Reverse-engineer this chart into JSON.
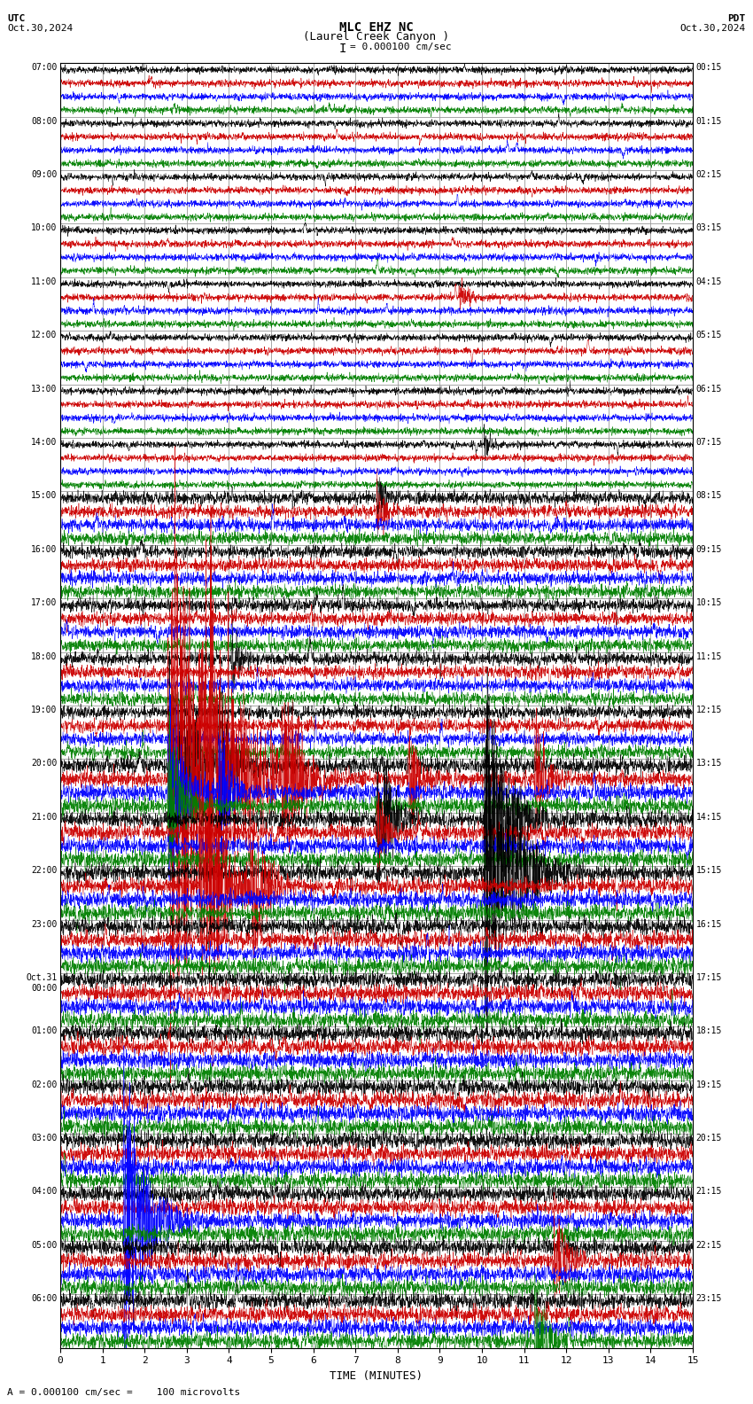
{
  "title_line1": "MLC EHZ NC",
  "title_line2": "(Laurel Creek Canyon )",
  "scale_label": "= 0.000100 cm/sec",
  "utc_label": "UTC",
  "utc_date": "Oct.30,2024",
  "pdt_label": "PDT",
  "pdt_date": "Oct.30,2024",
  "bottom_label": "A = 0.000100 cm/sec =    100 microvolts",
  "xlabel": "TIME (MINUTES)",
  "xlim": [
    0,
    15
  ],
  "xticks": [
    0,
    1,
    2,
    3,
    4,
    5,
    6,
    7,
    8,
    9,
    10,
    11,
    12,
    13,
    14,
    15
  ],
  "fig_width": 8.5,
  "fig_height": 15.84,
  "dpi": 100,
  "bg_color": "#ffffff",
  "grid_color": "#999999",
  "trace_colors": [
    "black",
    "#cc0000",
    "blue",
    "green"
  ],
  "n_blocks": 24,
  "traces_per_block": 4,
  "left_labels": [
    "07:00",
    "08:00",
    "09:00",
    "10:00",
    "11:00",
    "12:00",
    "13:00",
    "14:00",
    "15:00",
    "16:00",
    "17:00",
    "18:00",
    "19:00",
    "20:00",
    "21:00",
    "22:00",
    "23:00",
    "Oct.31\n00:00",
    "01:00",
    "02:00",
    "03:00",
    "04:00",
    "05:00",
    "06:00"
  ],
  "right_labels": [
    "00:15",
    "01:15",
    "02:15",
    "03:15",
    "04:15",
    "05:15",
    "06:15",
    "07:15",
    "08:15",
    "09:15",
    "10:15",
    "11:15",
    "12:15",
    "13:15",
    "14:15",
    "15:15",
    "16:15",
    "17:15",
    "18:15",
    "19:15",
    "20:15",
    "21:15",
    "22:15",
    "23:15"
  ]
}
